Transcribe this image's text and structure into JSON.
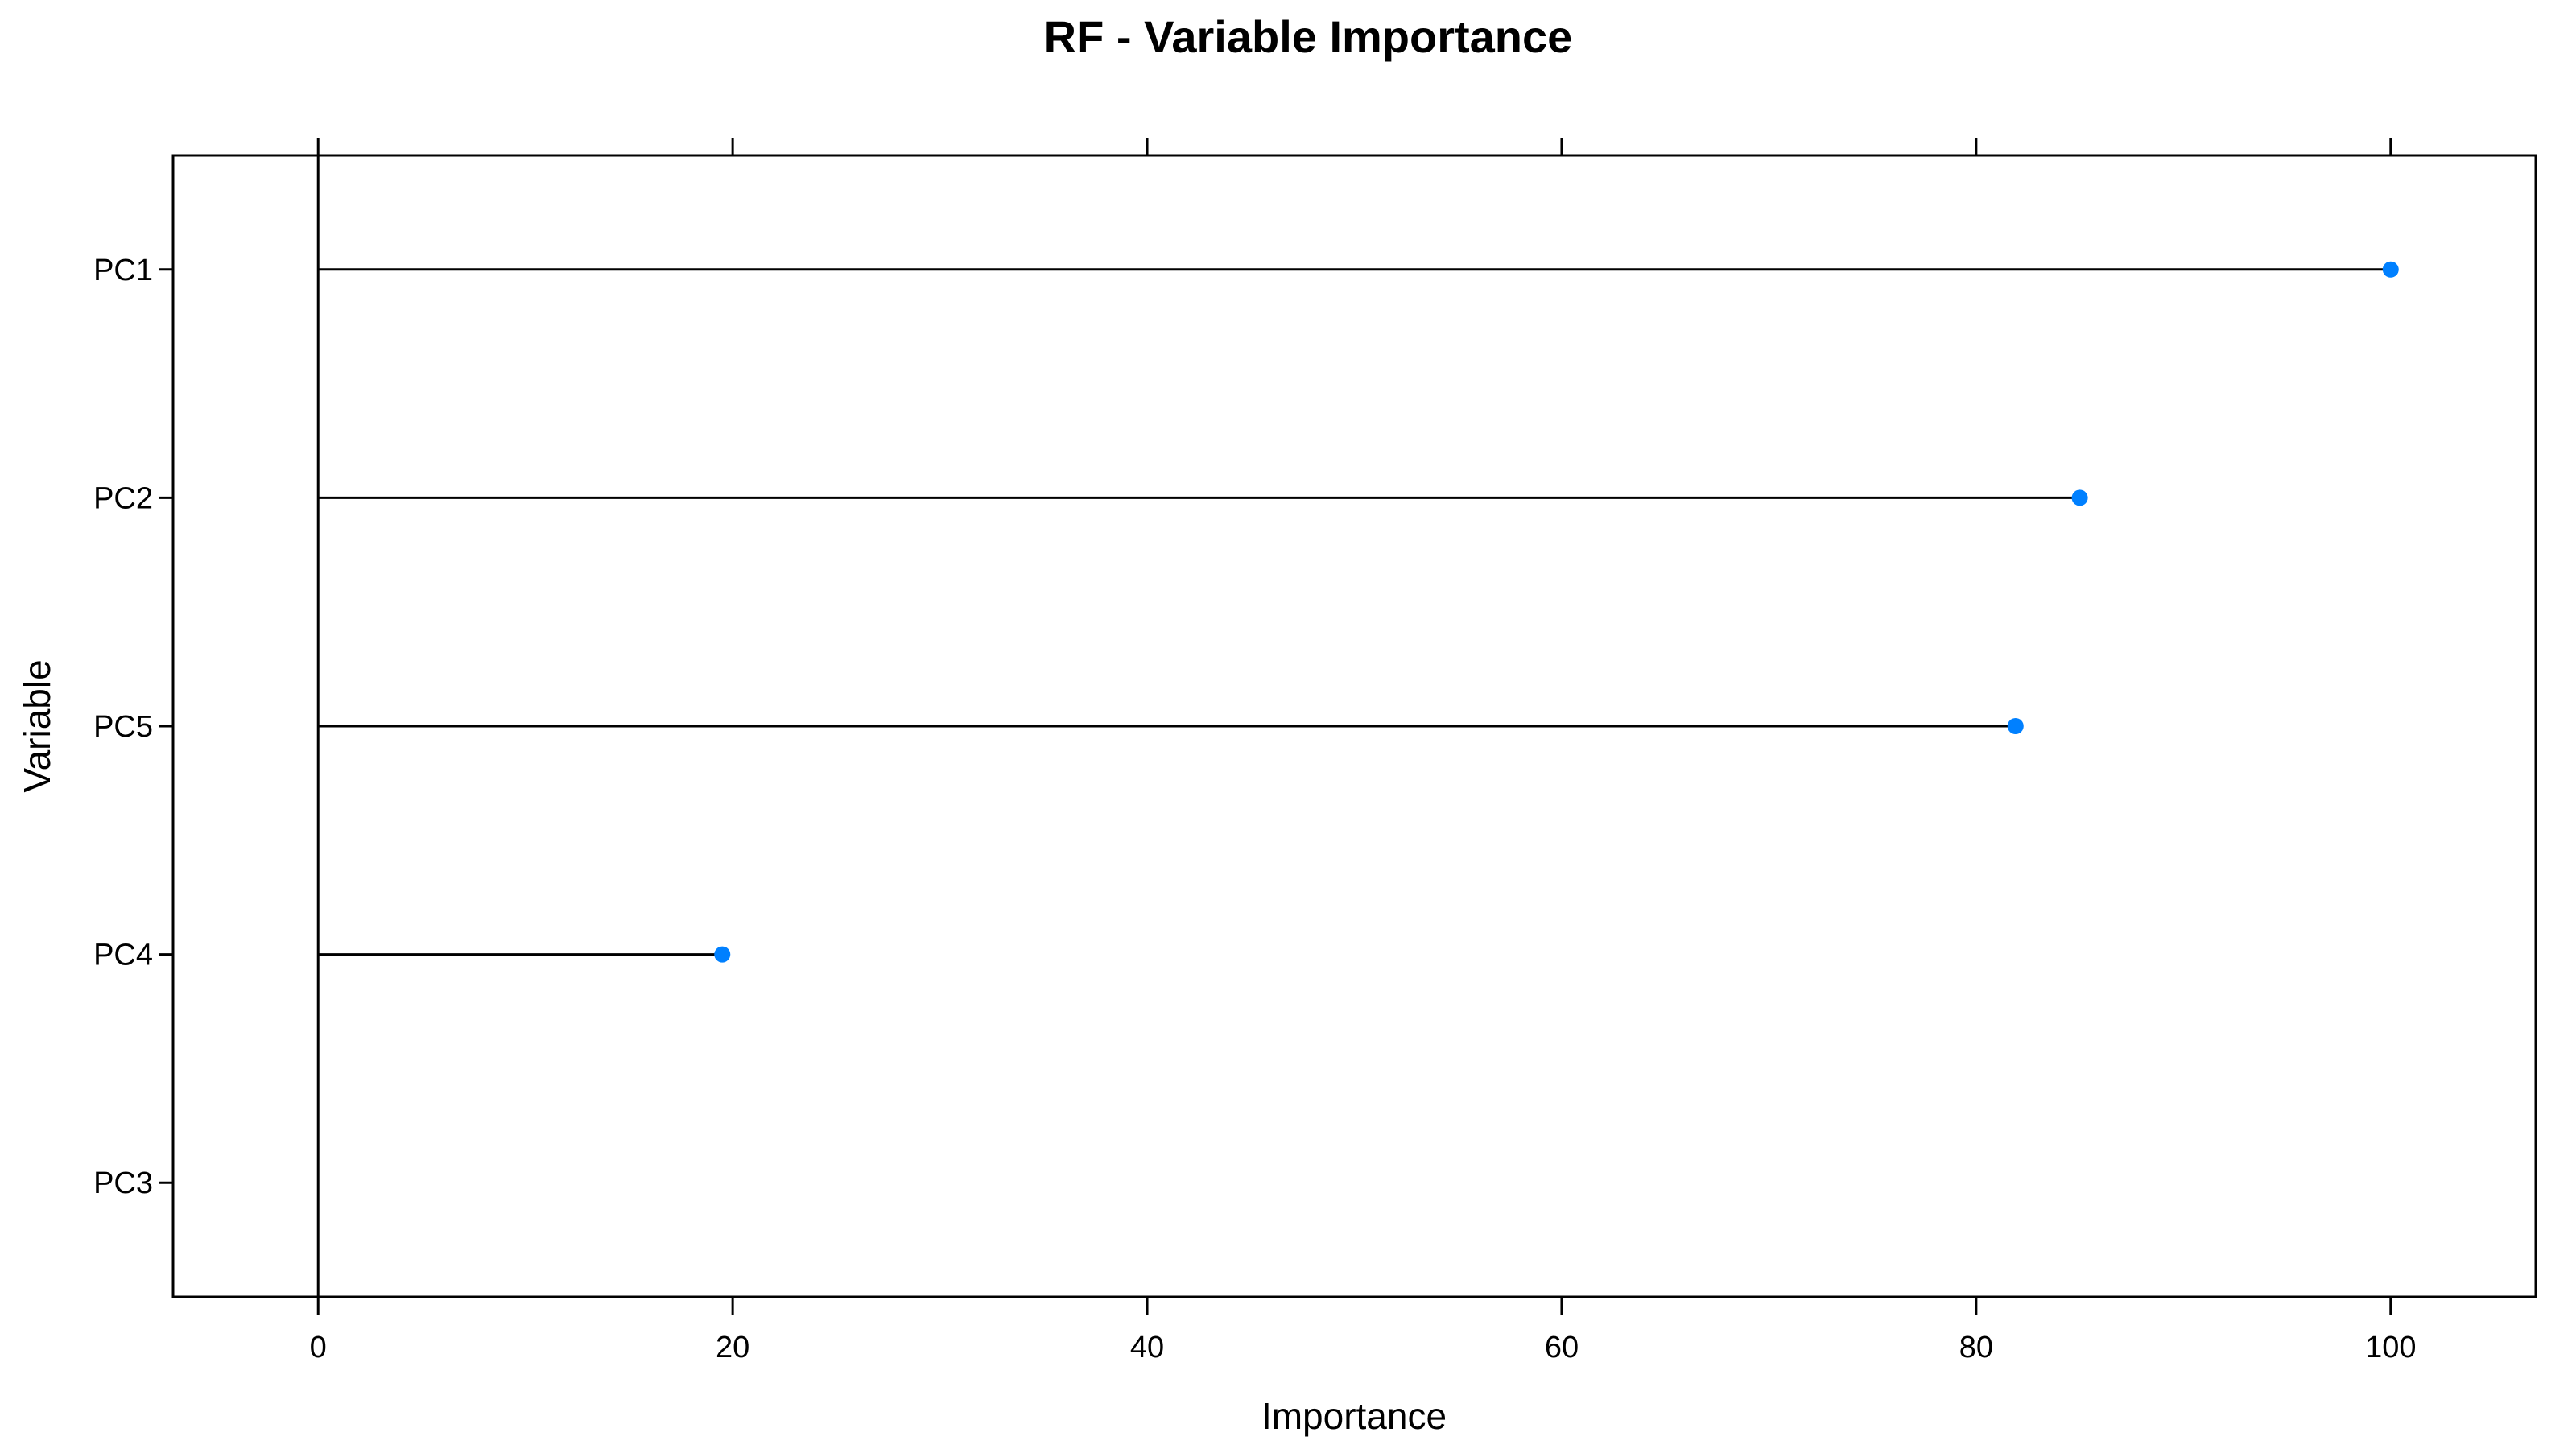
{
  "chart_data": {
    "type": "dot",
    "title": "RF - Variable Importance",
    "xlabel": "Importance",
    "ylabel": "Variable",
    "categories": [
      "PC1",
      "PC2",
      "PC5",
      "PC4",
      "PC3"
    ],
    "values": [
      100,
      85,
      81.9,
      19.5,
      0
    ],
    "xlim": [
      -7,
      107
    ],
    "xticks": [
      0,
      20,
      40,
      60,
      80,
      100
    ],
    "xtick_labels": [
      "0",
      "20",
      "40",
      "60",
      "80",
      "100"
    ],
    "ticks_on_top": true,
    "reference_line_at": 0,
    "grid": false,
    "point_color": "#0080FF",
    "line_color": "#000000"
  }
}
